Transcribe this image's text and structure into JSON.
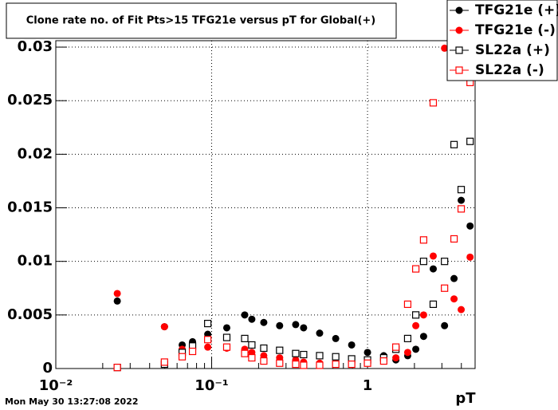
{
  "chart_data": {
    "type": "scatter",
    "title": "Clone rate no. of Fit Pts>15 TFG21e versus pT for Global(+)",
    "x_label": "pT",
    "timestamp": "Mon May 30 13:27:08 2022",
    "log_x": true,
    "grid": true,
    "legend_position": "top-right",
    "xlim": [
      0.01,
      4.9
    ],
    "ylim": [
      0,
      0.0306
    ],
    "xticks": [
      {
        "value": 0.01,
        "label": "10⁻²"
      },
      {
        "value": 0.1,
        "label": "10⁻¹"
      },
      1
    ],
    "x_minor_ticks": [
      0.02,
      0.03,
      0.04,
      0.05,
      0.06,
      0.07,
      0.08,
      0.09,
      0.2,
      0.3,
      0.4,
      0.5,
      0.6,
      0.7,
      0.8,
      0.9,
      2,
      3,
      4
    ],
    "yticks": [
      0,
      0.005,
      0.01,
      0.015,
      0.02,
      0.025,
      0.03
    ],
    "x": [
      0.0248,
      0.0498,
      0.0647,
      0.0754,
      0.0944,
      0.125,
      0.163,
      0.181,
      0.216,
      0.273,
      0.346,
      0.389,
      0.493,
      0.625,
      0.791,
      1.0,
      1.27,
      1.52,
      1.81,
      2.04,
      2.29,
      2.64,
      3.12,
      3.59,
      3.99,
      4.55
    ],
    "series": [
      {
        "name": "TFG21e (+)",
        "color": "#000000",
        "marker": "filled",
        "values": [
          0.0063,
          0.0039,
          0.0022,
          0.0025,
          0.0032,
          0.0038,
          0.005,
          0.0046,
          0.0043,
          0.004,
          0.0041,
          0.0038,
          0.0033,
          0.0028,
          0.0022,
          0.0015,
          0.0012,
          0.0008,
          0.0012,
          0.0018,
          0.003,
          0.0093,
          0.004,
          0.0084,
          0.0157,
          0.0133
        ]
      },
      {
        "name": "TFG21e (-)",
        "color": "#ff0000",
        "marker": "filled",
        "values": [
          0.007,
          0.0039,
          0.0018,
          0.002,
          0.002,
          0.0019,
          0.0018,
          0.0015,
          0.0012,
          0.001,
          0.0008,
          0.0006,
          0.0005,
          0.0005,
          0.0005,
          0.0006,
          0.0008,
          0.001,
          0.0015,
          0.004,
          0.005,
          0.0105,
          0.0299,
          0.0065,
          0.0055,
          0.0104
        ]
      },
      {
        "name": "SL22a (+)",
        "color": "#000000",
        "marker": "open",
        "values": [
          0.0001,
          0.0004,
          0.0015,
          0.0021,
          0.0042,
          0.0029,
          0.0028,
          0.0022,
          0.0019,
          0.0017,
          0.0014,
          0.0013,
          0.0012,
          0.0011,
          0.0009,
          0.0008,
          0.001,
          0.0018,
          0.0028,
          0.005,
          0.01,
          0.006,
          0.01,
          0.0209,
          0.0167,
          0.0212
        ]
      },
      {
        "name": "SL22a (-)",
        "color": "#ff0000",
        "marker": "open",
        "values": [
          0.0001,
          0.0006,
          0.0011,
          0.0016,
          0.0027,
          0.002,
          0.0014,
          0.001,
          0.0007,
          0.0005,
          0.0004,
          0.0003,
          0.0003,
          0.0004,
          0.0004,
          0.0005,
          0.0007,
          0.002,
          0.006,
          0.0093,
          0.012,
          0.0248,
          0.0075,
          0.0121,
          0.0149,
          0.0267
        ]
      }
    ]
  }
}
